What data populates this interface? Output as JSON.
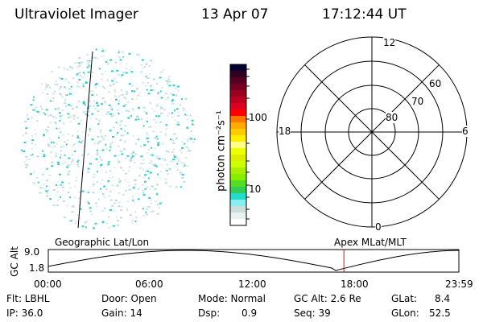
{
  "header": {
    "instrument": "Ultraviolet Imager",
    "date": "13 Apr 07",
    "time": "17:12:44 UT"
  },
  "colorbar": {
    "label": "photon cm⁻²s⁻¹",
    "ticks": [
      "100",
      "10"
    ],
    "colors": [
      "#000033",
      "#330022",
      "#550022",
      "#770022",
      "#990022",
      "#bb0022",
      "#dd0022",
      "#ff0000",
      "#ff7700",
      "#ffaa00",
      "#ffcc00",
      "#ffee00",
      "#ffff88",
      "#eeff00",
      "#ddee00",
      "#ccff00",
      "#aaee00",
      "#88ee00",
      "#55dd22",
      "#33cc55",
      "#22ddcc",
      "#88eeee",
      "#ccdddd",
      "#e8f2ee",
      "#ffffff"
    ]
  },
  "polar": {
    "mlt_labels": {
      "top": "12",
      "bottom": "0",
      "left": "18",
      "right": "6"
    },
    "lat_labels": [
      "80",
      "70",
      "60"
    ]
  },
  "image": {
    "dot_color": "#33cccc"
  },
  "altitude": {
    "ylabel": "GC Alt",
    "yticks": [
      "9.0",
      "1.8"
    ],
    "xticks": [
      "00:00",
      "06:00",
      "12:00",
      "18:00",
      "23:59"
    ],
    "left_label": "Geographic Lat/Lon",
    "right_label": "Apex MLat/MLT",
    "current_time_fraction": 0.72,
    "marker_color": "#ff0000"
  },
  "status": {
    "flt": "Flt: LBHL",
    "ip": "IP: 36.0",
    "door": "Door: Open",
    "gain": "Gain: 14",
    "mode": "Mode: Normal",
    "dsp_label": "Dsp:",
    "dsp": "0.9",
    "gcalt": "GC Alt: 2.6 Re",
    "seq": "Seq: 39",
    "glat_label": "GLat:",
    "glat": "8.4",
    "glon_label": "GLon:",
    "glon": "52.5"
  }
}
